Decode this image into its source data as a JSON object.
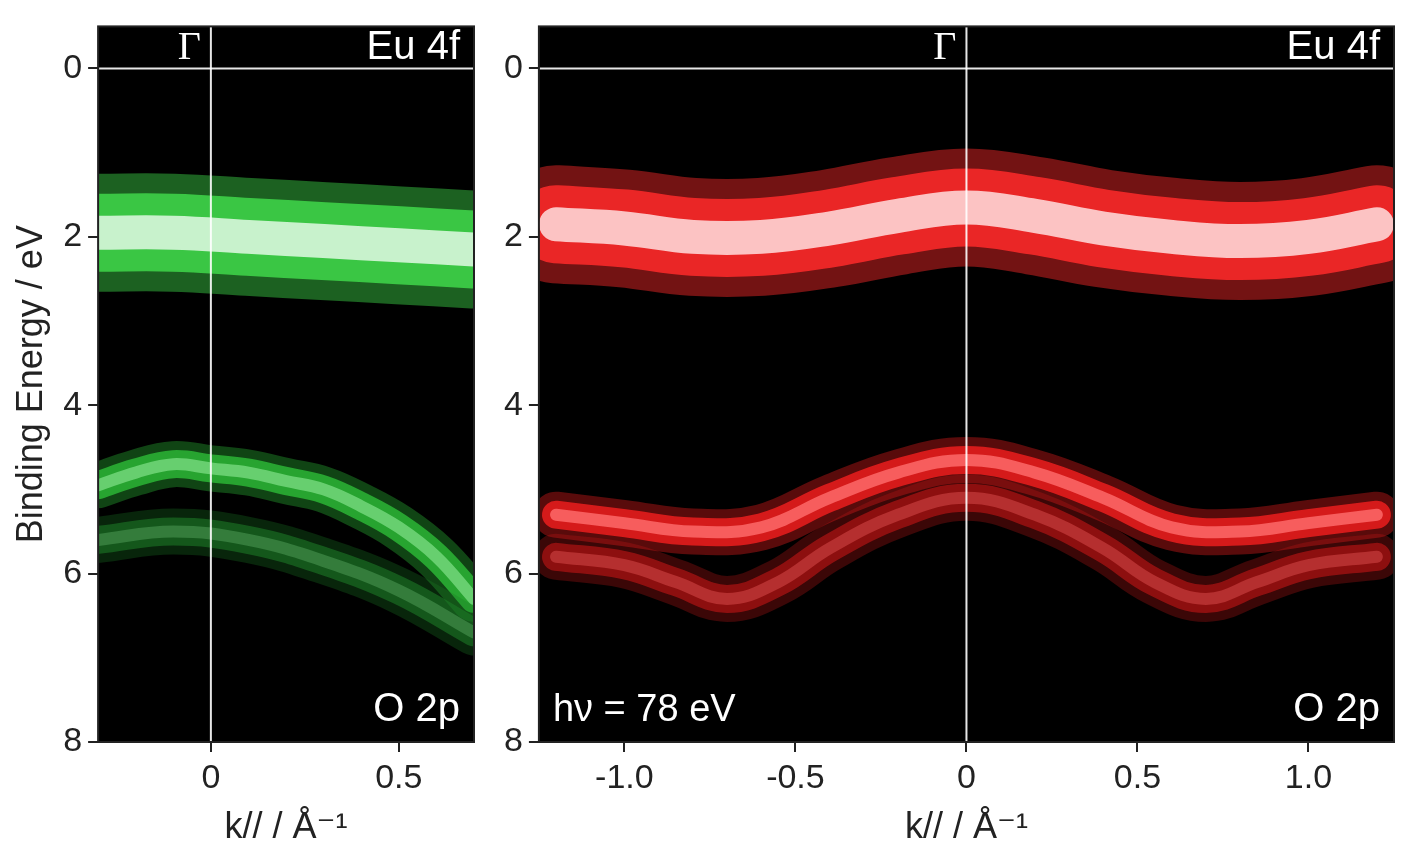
{
  "chart_data": [
    {
      "type": "line",
      "x_label": "k// / Å⁻¹",
      "y_label": "Binding Energy / eV",
      "xlim": [
        -0.3,
        0.7
      ],
      "xticks": [
        0,
        0.5
      ],
      "ylim": [
        8,
        -0.5
      ],
      "yticks": [
        0,
        2,
        4,
        6,
        8
      ],
      "vlines": [
        0
      ],
      "hlines": [
        0
      ],
      "annotations": [
        {
          "text": "Γ",
          "x": 0
        }
      ],
      "series": [
        {
          "name": "Eu 4f",
          "color": "#3fd84a",
          "x": [
            -0.3,
            -0.1,
            0.1,
            0.3,
            0.5,
            0.7
          ],
          "values": [
            1.95,
            1.95,
            2.0,
            2.05,
            2.1,
            2.15
          ]
        },
        {
          "name": "O 2p",
          "color": "#2fc43a",
          "x": [
            -0.3,
            -0.2,
            -0.1,
            0,
            0.1,
            0.2,
            0.3,
            0.4,
            0.5,
            0.6,
            0.7
          ],
          "values": [
            4.95,
            4.8,
            4.7,
            4.75,
            4.8,
            4.9,
            5.0,
            5.2,
            5.45,
            5.8,
            6.3
          ]
        },
        {
          "name": "O 2p",
          "color": "#1c7a26",
          "x": [
            -0.3,
            -0.1,
            0.1,
            0.3,
            0.5,
            0.7
          ],
          "values": [
            5.6,
            5.5,
            5.6,
            5.85,
            6.2,
            6.7
          ]
        }
      ]
    },
    {
      "type": "line",
      "x_label": "k// / Å⁻¹",
      "xlim": [
        -1.25,
        1.25
      ],
      "xticks": [
        {
          "value": -1,
          "label": "-1.0"
        },
        -0.5,
        0,
        0.5,
        {
          "value": 1,
          "label": "1.0"
        }
      ],
      "ylim": [
        8,
        -0.5
      ],
      "yticks": [
        0,
        2,
        4,
        6,
        8
      ],
      "vlines": [
        0
      ],
      "hlines": [
        0
      ],
      "annotations": [
        {
          "text": "Γ",
          "x": 0
        },
        {
          "text": "hν = 78 eV"
        }
      ],
      "series": [
        {
          "name": "Eu 4f",
          "color": "#ff2a2a",
          "x": [
            -1.2,
            -1.0,
            -0.8,
            -0.6,
            -0.4,
            -0.2,
            0,
            0.2,
            0.4,
            0.6,
            0.8,
            1.0,
            1.2
          ],
          "values": [
            1.85,
            1.9,
            2.0,
            2.0,
            1.9,
            1.75,
            1.65,
            1.75,
            1.9,
            2.0,
            2.05,
            2.0,
            1.85
          ]
        },
        {
          "name": "O 2p",
          "color": "#ff2020",
          "x": [
            -1.2,
            -1.0,
            -0.8,
            -0.6,
            -0.4,
            -0.2,
            0,
            0.2,
            0.4,
            0.6,
            0.8,
            1.0,
            1.2
          ],
          "values": [
            5.3,
            5.4,
            5.5,
            5.45,
            5.1,
            4.8,
            4.65,
            4.8,
            5.1,
            5.45,
            5.5,
            5.4,
            5.3
          ]
        },
        {
          "name": "O 2p",
          "color": "#c41616",
          "x": [
            -1.2,
            -1.0,
            -0.85,
            -0.7,
            -0.55,
            -0.4,
            -0.2,
            0,
            0.2,
            0.4,
            0.55,
            0.7,
            0.85,
            1.0,
            1.2
          ],
          "values": [
            5.8,
            5.9,
            6.1,
            6.3,
            6.1,
            5.7,
            5.3,
            5.1,
            5.3,
            5.7,
            6.1,
            6.3,
            6.1,
            5.9,
            5.8
          ]
        }
      ]
    }
  ]
}
